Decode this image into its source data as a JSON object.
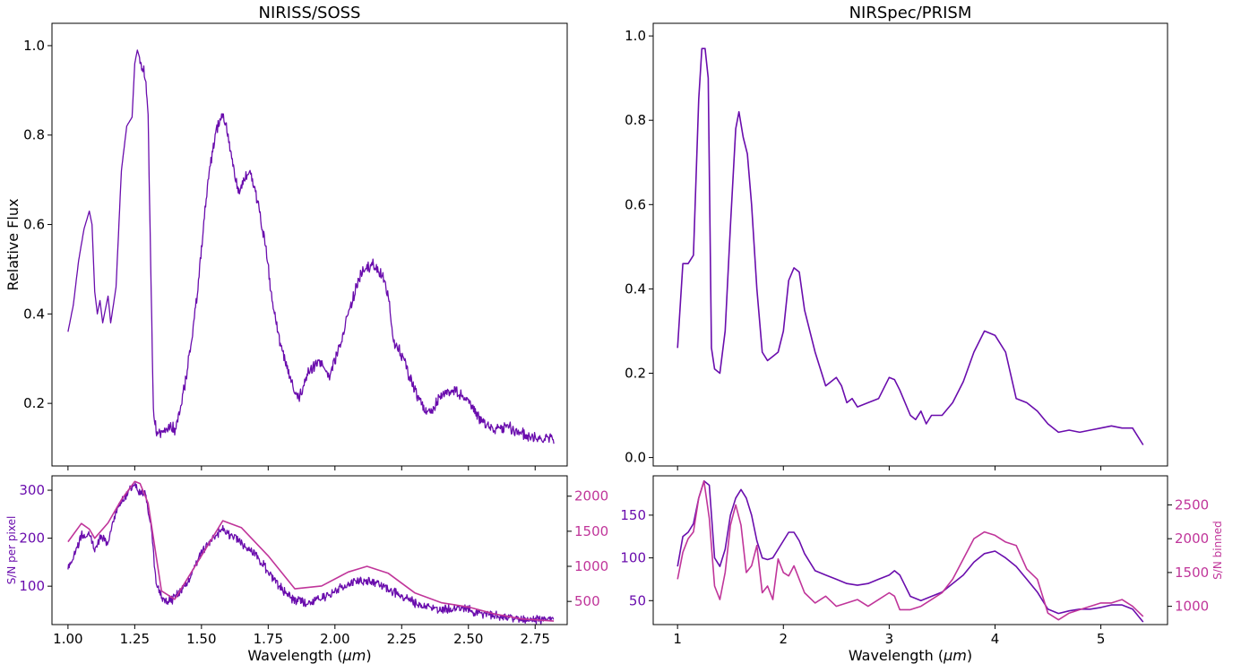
{
  "colors": {
    "main": "#6a0dad",
    "binned": "#c0359a",
    "axis": "#000000"
  },
  "chart_data": [
    {
      "id": "soss-flux",
      "type": "line",
      "title": "NIRISS/SOSS",
      "xlabel": "",
      "ylabel": "Relative Flux",
      "xlim": [
        0.94,
        2.87
      ],
      "ylim": [
        0.06,
        1.05
      ],
      "xticks": [
        1.0,
        1.25,
        1.5,
        1.75,
        2.0,
        2.25,
        2.5,
        2.75
      ],
      "yticks": [
        0.2,
        0.4,
        0.6,
        0.8,
        1.0
      ],
      "ytick_labels": [
        "0.2",
        "0.4",
        "0.6",
        "0.8",
        "1.0"
      ],
      "show_xtick_labels": false,
      "series": [
        {
          "color": "#6a0dad",
          "noise": 0.012,
          "noise_start": 1.27,
          "x": [
            1.0,
            1.02,
            1.04,
            1.06,
            1.08,
            1.09,
            1.1,
            1.11,
            1.12,
            1.13,
            1.14,
            1.15,
            1.16,
            1.18,
            1.2,
            1.22,
            1.24,
            1.25,
            1.26,
            1.27,
            1.28,
            1.29,
            1.3,
            1.31,
            1.32,
            1.33,
            1.34,
            1.36,
            1.38,
            1.4,
            1.42,
            1.44,
            1.46,
            1.48,
            1.5,
            1.52,
            1.54,
            1.56,
            1.58,
            1.6,
            1.62,
            1.64,
            1.66,
            1.68,
            1.7,
            1.72,
            1.74,
            1.76,
            1.78,
            1.8,
            1.82,
            1.84,
            1.86,
            1.88,
            1.9,
            1.92,
            1.94,
            1.96,
            1.98,
            2.0,
            2.02,
            2.04,
            2.06,
            2.08,
            2.1,
            2.12,
            2.14,
            2.16,
            2.18,
            2.2,
            2.22,
            2.25,
            2.28,
            2.3,
            2.33,
            2.36,
            2.4,
            2.45,
            2.5,
            2.55,
            2.6,
            2.65,
            2.7,
            2.75,
            2.8,
            2.82
          ],
          "y": [
            0.36,
            0.42,
            0.52,
            0.59,
            0.63,
            0.6,
            0.45,
            0.4,
            0.43,
            0.38,
            0.41,
            0.44,
            0.38,
            0.46,
            0.72,
            0.82,
            0.84,
            0.96,
            0.99,
            0.97,
            0.95,
            0.93,
            0.85,
            0.5,
            0.18,
            0.14,
            0.13,
            0.14,
            0.15,
            0.14,
            0.19,
            0.25,
            0.33,
            0.42,
            0.55,
            0.67,
            0.76,
            0.82,
            0.85,
            0.8,
            0.72,
            0.67,
            0.7,
            0.72,
            0.68,
            0.62,
            0.55,
            0.45,
            0.38,
            0.32,
            0.28,
            0.24,
            0.21,
            0.23,
            0.27,
            0.28,
            0.3,
            0.28,
            0.26,
            0.3,
            0.33,
            0.38,
            0.42,
            0.46,
            0.49,
            0.5,
            0.51,
            0.5,
            0.48,
            0.44,
            0.34,
            0.31,
            0.26,
            0.23,
            0.19,
            0.18,
            0.22,
            0.23,
            0.2,
            0.16,
            0.14,
            0.15,
            0.13,
            0.12,
            0.12,
            0.12
          ]
        }
      ]
    },
    {
      "id": "soss-snr",
      "type": "line",
      "title": "",
      "xlabel": "Wavelength ($\\mu m$)",
      "ylabel": "S/N per pixel",
      "ylabel_right": "",
      "xlim": [
        0.94,
        2.87
      ],
      "ylim": [
        20,
        330
      ],
      "ylim_right": [
        170,
        2290
      ],
      "xticks": [
        1.0,
        1.25,
        1.5,
        1.75,
        2.0,
        2.25,
        2.5,
        2.75
      ],
      "xtick_labels": [
        "1.00",
        "1.25",
        "1.50",
        "1.75",
        "2.00",
        "2.25",
        "2.50",
        "2.75"
      ],
      "yticks": [
        100,
        200,
        300
      ],
      "ytick_labels": [
        "100",
        "200",
        "300"
      ],
      "yticks_right": [
        500,
        1000,
        1500,
        2000
      ],
      "ytick_labels_right": [
        "500",
        "1000",
        "1500",
        "2000"
      ],
      "series": [
        {
          "color": "#6a0dad",
          "axis": "left",
          "noise": 8,
          "noise_start": 1.0,
          "x": [
            1.0,
            1.02,
            1.05,
            1.08,
            1.1,
            1.12,
            1.15,
            1.18,
            1.2,
            1.23,
            1.25,
            1.27,
            1.29,
            1.31,
            1.33,
            1.35,
            1.38,
            1.4,
            1.45,
            1.5,
            1.55,
            1.58,
            1.6,
            1.65,
            1.7,
            1.75,
            1.8,
            1.85,
            1.9,
            1.95,
            2.0,
            2.05,
            2.1,
            2.15,
            2.2,
            2.25,
            2.3,
            2.35,
            2.4,
            2.45,
            2.5,
            2.55,
            2.6,
            2.65,
            2.7,
            2.75,
            2.8,
            2.82
          ],
          "y": [
            140,
            160,
            205,
            210,
            175,
            205,
            190,
            255,
            275,
            300,
            310,
            295,
            290,
            230,
            110,
            75,
            70,
            75,
            110,
            170,
            205,
            220,
            210,
            190,
            170,
            130,
            95,
            70,
            65,
            75,
            90,
            105,
            112,
            108,
            95,
            80,
            65,
            55,
            50,
            55,
            52,
            42,
            38,
            36,
            32,
            30,
            30,
            30
          ]
        },
        {
          "color": "#c0359a",
          "axis": "right",
          "x": [
            1.0,
            1.05,
            1.08,
            1.1,
            1.15,
            1.2,
            1.25,
            1.27,
            1.3,
            1.35,
            1.4,
            1.5,
            1.58,
            1.65,
            1.75,
            1.85,
            1.95,
            2.05,
            2.12,
            2.2,
            2.3,
            2.4,
            2.5,
            2.6,
            2.7,
            2.82
          ],
          "y": [
            1350,
            1610,
            1530,
            1400,
            1620,
            1950,
            2210,
            2180,
            1900,
            650,
            530,
            1150,
            1650,
            1550,
            1150,
            680,
            720,
            920,
            1000,
            900,
            620,
            480,
            420,
            320,
            250,
            220
          ]
        }
      ]
    },
    {
      "id": "prism-flux",
      "type": "line",
      "title": "NIRSpec/PRISM",
      "xlabel": "",
      "ylabel": "",
      "xlim": [
        0.77,
        5.63
      ],
      "ylim": [
        -0.02,
        1.03
      ],
      "xticks": [
        1,
        2,
        3,
        4,
        5
      ],
      "yticks": [
        0.0,
        0.2,
        0.4,
        0.6,
        0.8,
        1.0
      ],
      "ytick_labels": [
        "0.0",
        "0.2",
        "0.4",
        "0.6",
        "0.8",
        "1.0"
      ],
      "show_xtick_labels": false,
      "series": [
        {
          "color": "#6a0dad",
          "x": [
            1.0,
            1.05,
            1.1,
            1.15,
            1.2,
            1.23,
            1.26,
            1.29,
            1.32,
            1.35,
            1.4,
            1.45,
            1.5,
            1.55,
            1.58,
            1.62,
            1.66,
            1.7,
            1.75,
            1.8,
            1.85,
            1.9,
            1.95,
            2.0,
            2.05,
            2.1,
            2.15,
            2.2,
            2.3,
            2.4,
            2.5,
            2.55,
            2.6,
            2.65,
            2.7,
            2.8,
            2.9,
            3.0,
            3.05,
            3.1,
            3.2,
            3.25,
            3.3,
            3.35,
            3.4,
            3.5,
            3.6,
            3.7,
            3.8,
            3.9,
            4.0,
            4.1,
            4.2,
            4.3,
            4.4,
            4.5,
            4.6,
            4.7,
            4.8,
            4.9,
            5.0,
            5.1,
            5.2,
            5.3,
            5.4
          ],
          "y": [
            0.26,
            0.46,
            0.46,
            0.48,
            0.85,
            0.97,
            0.97,
            0.9,
            0.26,
            0.21,
            0.2,
            0.3,
            0.55,
            0.78,
            0.82,
            0.76,
            0.72,
            0.6,
            0.4,
            0.25,
            0.23,
            0.24,
            0.25,
            0.3,
            0.42,
            0.45,
            0.44,
            0.35,
            0.25,
            0.17,
            0.19,
            0.17,
            0.13,
            0.14,
            0.12,
            0.13,
            0.14,
            0.19,
            0.185,
            0.16,
            0.1,
            0.09,
            0.11,
            0.08,
            0.1,
            0.1,
            0.13,
            0.18,
            0.25,
            0.3,
            0.29,
            0.25,
            0.14,
            0.13,
            0.11,
            0.08,
            0.06,
            0.065,
            0.06,
            0.065,
            0.07,
            0.075,
            0.07,
            0.07,
            0.03
          ]
        }
      ]
    },
    {
      "id": "prism-snr",
      "type": "line",
      "title": "",
      "xlabel": "Wavelength ($\\mu m$)",
      "ylabel": "",
      "ylabel_right": "S/N binned",
      "xlim": [
        0.77,
        5.63
      ],
      "ylim": [
        22,
        196
      ],
      "ylim_right": [
        730,
        2930
      ],
      "xticks": [
        1,
        2,
        3,
        4,
        5
      ],
      "xtick_labels": [
        "1",
        "2",
        "3",
        "4",
        "5"
      ],
      "yticks": [
        50,
        100,
        150
      ],
      "ytick_labels": [
        "50",
        "100",
        "150"
      ],
      "yticks_right": [
        1000,
        1500,
        2000,
        2500
      ],
      "ytick_labels_right": [
        "1000",
        "1500",
        "2000",
        "2500"
      ],
      "series": [
        {
          "color": "#6a0dad",
          "axis": "left",
          "x": [
            1.0,
            1.05,
            1.1,
            1.15,
            1.2,
            1.25,
            1.3,
            1.35,
            1.4,
            1.45,
            1.5,
            1.55,
            1.6,
            1.65,
            1.7,
            1.75,
            1.8,
            1.85,
            1.9,
            1.95,
            2.0,
            2.05,
            2.1,
            2.15,
            2.2,
            2.3,
            2.4,
            2.5,
            2.6,
            2.7,
            2.8,
            2.9,
            3.0,
            3.05,
            3.1,
            3.2,
            3.3,
            3.4,
            3.5,
            3.6,
            3.7,
            3.8,
            3.9,
            4.0,
            4.1,
            4.2,
            4.3,
            4.4,
            4.5,
            4.6,
            4.7,
            4.8,
            4.9,
            5.0,
            5.1,
            5.2,
            5.3,
            5.4
          ],
          "y": [
            90,
            125,
            130,
            140,
            170,
            190,
            185,
            100,
            90,
            110,
            150,
            170,
            180,
            170,
            150,
            120,
            100,
            98,
            100,
            110,
            120,
            130,
            130,
            120,
            105,
            85,
            80,
            75,
            70,
            68,
            70,
            75,
            80,
            85,
            80,
            55,
            50,
            55,
            60,
            70,
            80,
            95,
            105,
            108,
            100,
            90,
            75,
            60,
            40,
            35,
            38,
            40,
            40,
            42,
            45,
            45,
            40,
            25
          ]
        },
        {
          "color": "#c0359a",
          "axis": "right",
          "x": [
            1.0,
            1.05,
            1.1,
            1.15,
            1.2,
            1.25,
            1.3,
            1.35,
            1.4,
            1.45,
            1.5,
            1.55,
            1.6,
            1.65,
            1.7,
            1.75,
            1.8,
            1.85,
            1.9,
            1.95,
            2.0,
            2.05,
            2.1,
            2.15,
            2.2,
            2.3,
            2.4,
            2.5,
            2.6,
            2.7,
            2.8,
            2.9,
            3.0,
            3.05,
            3.1,
            3.2,
            3.3,
            3.4,
            3.5,
            3.6,
            3.7,
            3.8,
            3.9,
            4.0,
            4.1,
            4.2,
            4.3,
            4.4,
            4.5,
            4.6,
            4.7,
            4.8,
            4.9,
            5.0,
            5.1,
            5.2,
            5.3,
            5.4
          ],
          "y": [
            1400,
            1800,
            2000,
            2100,
            2600,
            2850,
            2300,
            1300,
            1100,
            1500,
            2200,
            2500,
            2200,
            1500,
            1600,
            1900,
            1200,
            1300,
            1100,
            1700,
            1500,
            1450,
            1600,
            1400,
            1200,
            1050,
            1150,
            1000,
            1050,
            1100,
            1000,
            1100,
            1200,
            1150,
            950,
            950,
            1000,
            1100,
            1200,
            1400,
            1700,
            2000,
            2100,
            2050,
            1950,
            1900,
            1550,
            1400,
            900,
            800,
            900,
            950,
            1000,
            1050,
            1050,
            1100,
            1000,
            850
          ]
        }
      ]
    }
  ]
}
